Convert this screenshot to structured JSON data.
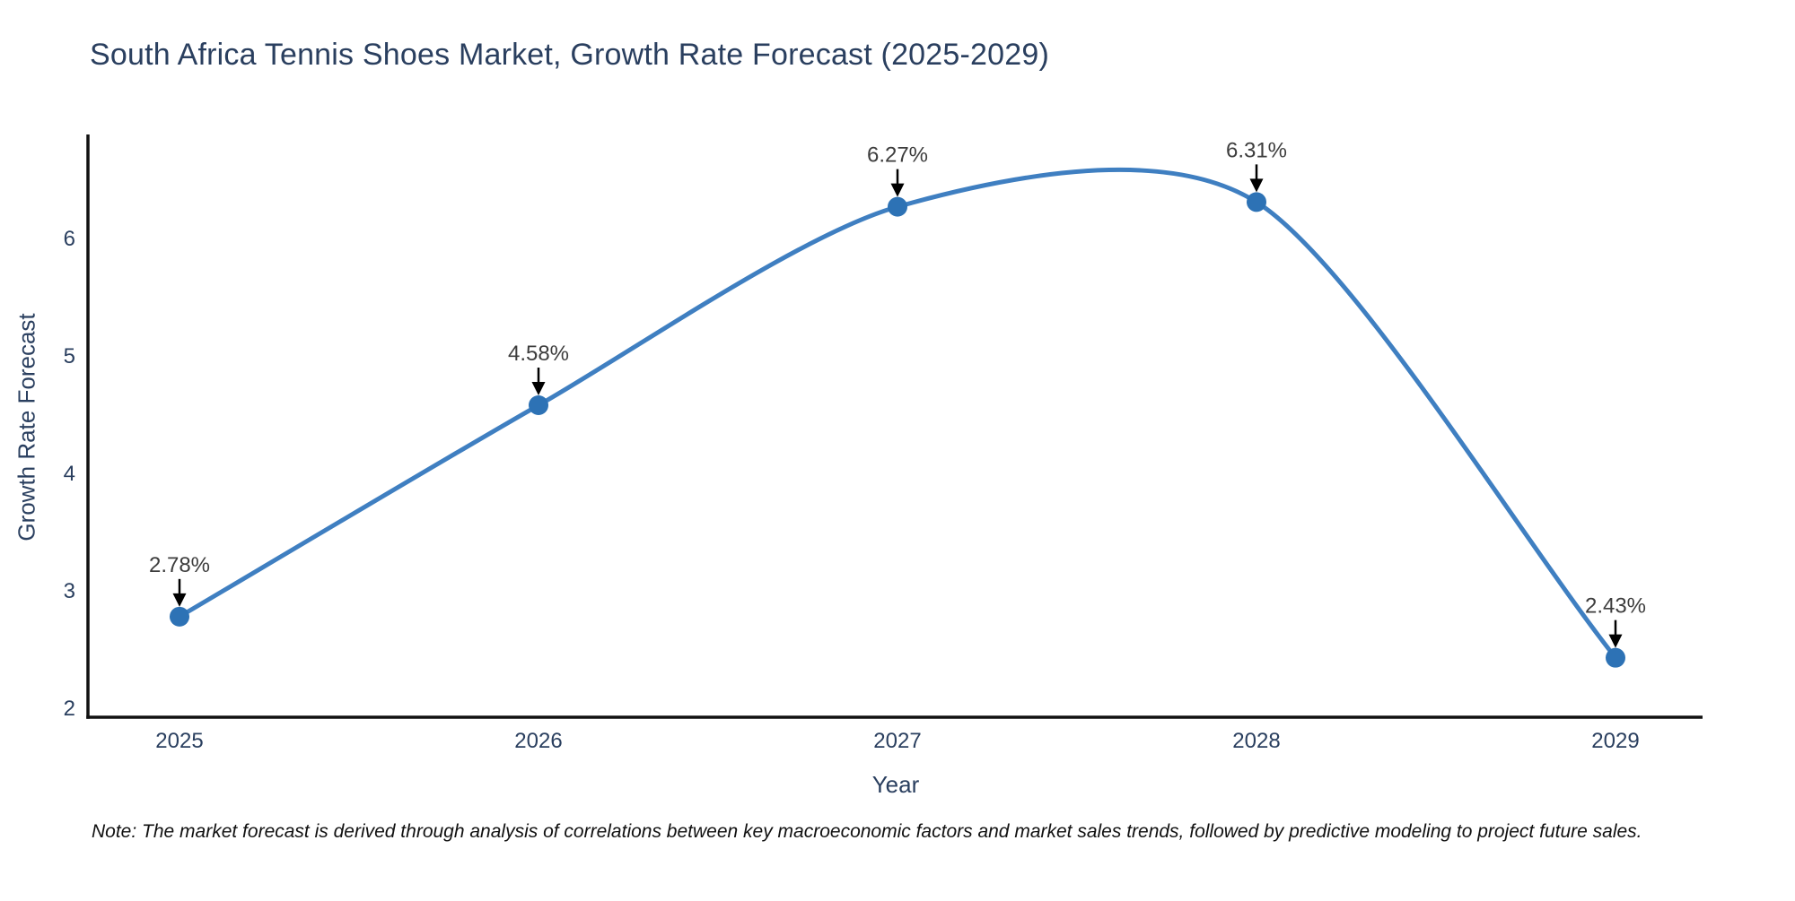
{
  "chart_data": {
    "type": "line",
    "title": "South Africa Tennis Shoes Market, Growth Rate Forecast (2025-2029)",
    "xlabel": "Year",
    "ylabel": "Growth Rate Forecast",
    "x": [
      2025,
      2026,
      2027,
      2028,
      2029
    ],
    "series": [
      {
        "name": "Growth Rate Forecast",
        "values": [
          2.78,
          4.58,
          6.27,
          6.31,
          2.43
        ]
      }
    ],
    "point_labels": [
      "2.78%",
      "4.58%",
      "6.27%",
      "6.31%",
      "2.43%"
    ],
    "yticks": [
      2,
      3,
      4,
      5,
      6
    ],
    "xticks": [
      2025,
      2026,
      2027,
      2028,
      2029
    ],
    "ylim": [
      1.92,
      6.89
    ],
    "xlim": [
      2024.74,
      2029.24
    ],
    "grid": false,
    "legend": "none",
    "line_shape": "spline",
    "line_color": "#3f7fc1",
    "marker_color": "#2d72b5",
    "arrow_color": "#000000",
    "axis_color": "#111111",
    "text_color": "#2a3f5f",
    "annotation_color": "#3d3d3d"
  },
  "note": {
    "text": "Note: The market forecast is derived through analysis of correlations between key macroeconomic factors and market sales trends, followed by predictive modeling to project future sales."
  }
}
